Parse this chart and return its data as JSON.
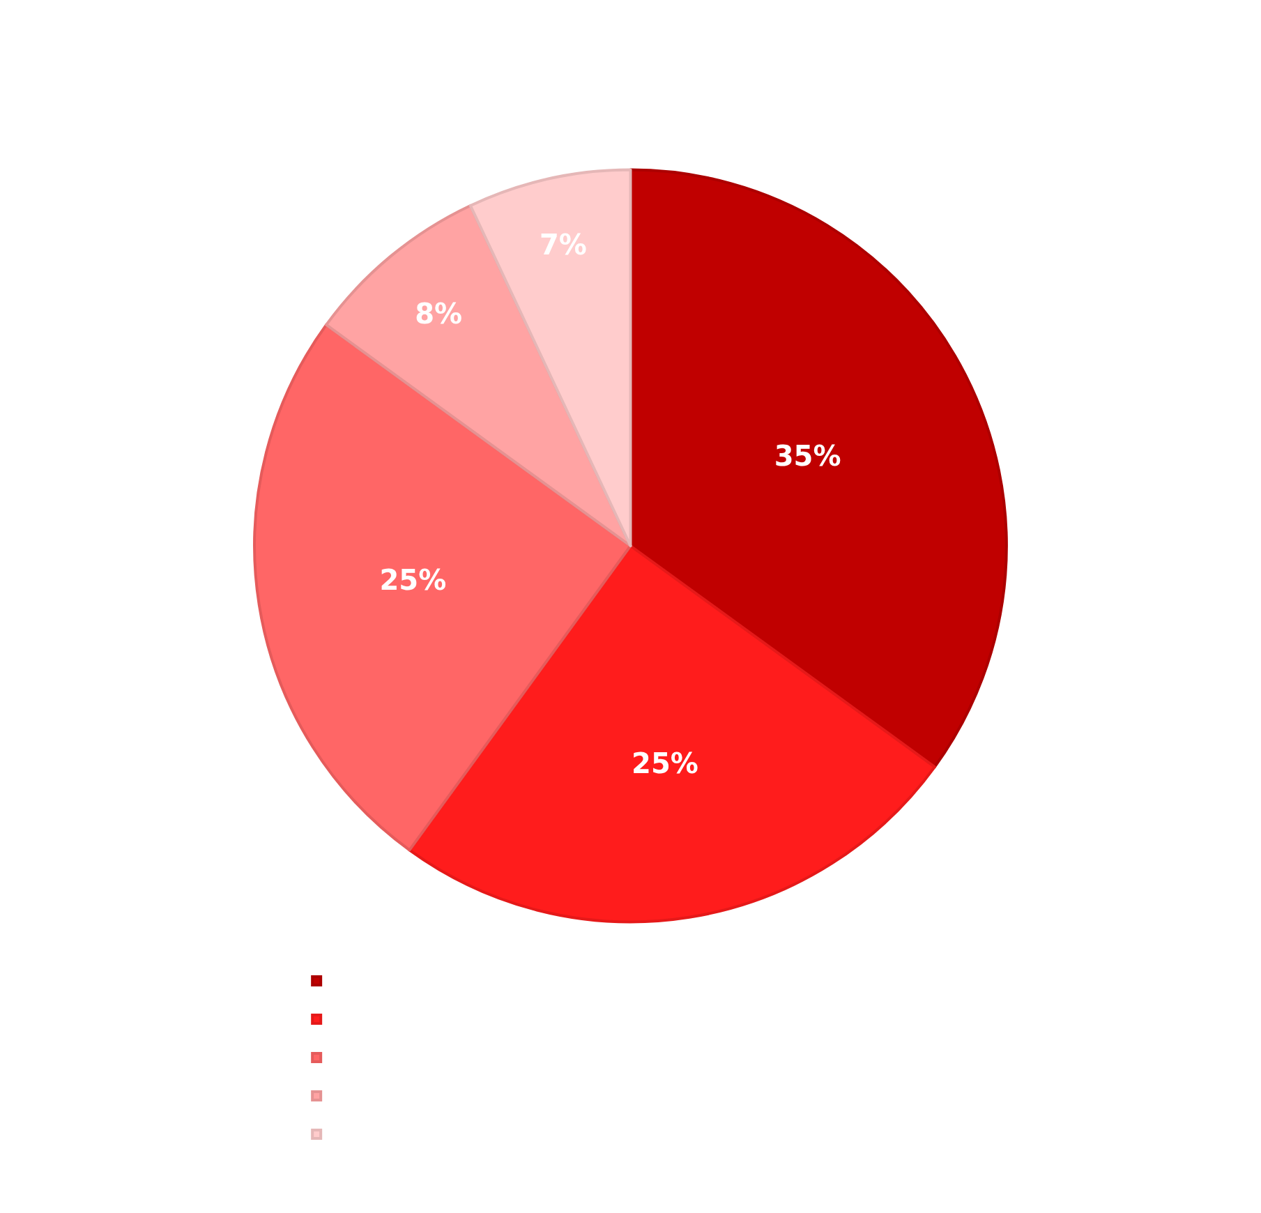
{
  "chart_data": {
    "type": "pie",
    "categories": [
      null,
      null,
      null,
      null,
      null
    ],
    "values": [
      35,
      25,
      25,
      8,
      7
    ],
    "colors": [
      "#c00000",
      "#ff1c1c",
      "#ff6666",
      "#ffa3a3",
      "#ffcccc"
    ],
    "value_labels": [
      "35%",
      "25%",
      "25%",
      "8%",
      "7%"
    ]
  }
}
